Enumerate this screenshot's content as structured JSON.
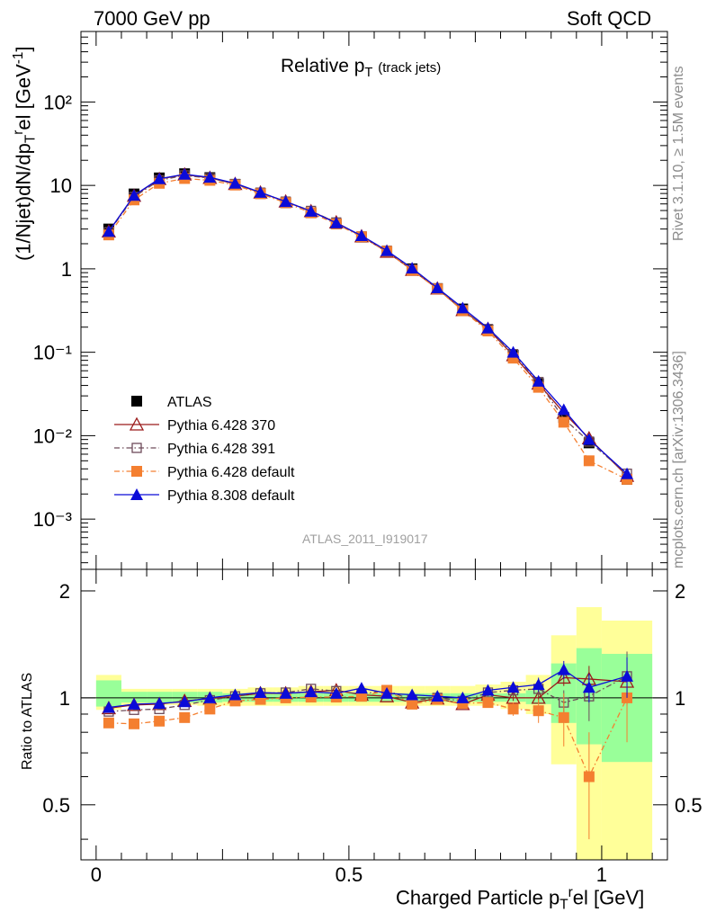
{
  "header": {
    "left": "7000 GeV pp",
    "right": "Soft QCD"
  },
  "side_text": {
    "top": "Rivet 3.1.10, ≥ 1.5M events",
    "bottom": "mcplots.cern.ch [arXiv:1306.3436]"
  },
  "panel_title": {
    "main": "Relative p",
    "sub": "T",
    "extra": "(track jets)"
  },
  "analysis_id": "ATLAS_2011_I919017",
  "axes": {
    "ylabel_main": "(1/Njet)dN/dp",
    "ylabel_sub": "T",
    "ylabel_sup": "r",
    "ylabel_end": "el [GeV",
    "ylabel_exp": "-1",
    "ylabel_close": "]",
    "xlabel_main": "Charged Particle p",
    "xlabel_sub": "T",
    "xlabel_sup": "r",
    "xlabel_end": "el [GeV]",
    "ratio_ylabel": "Ratio to ATLAS",
    "main_ytick_labels": [
      "10⁻³",
      "10⁻²",
      "10⁻¹",
      "1",
      "10",
      "10²"
    ],
    "ratio_ytick_labels": [
      "0.5",
      "1",
      "2"
    ],
    "xtick_labels": [
      "0",
      "0.5",
      "1"
    ]
  },
  "chart_data": {
    "type": "line",
    "x_bins": [
      [
        0.0,
        0.05
      ],
      [
        0.05,
        0.1
      ],
      [
        0.1,
        0.15
      ],
      [
        0.15,
        0.2
      ],
      [
        0.2,
        0.25
      ],
      [
        0.25,
        0.3
      ],
      [
        0.3,
        0.35
      ],
      [
        0.35,
        0.4
      ],
      [
        0.4,
        0.45
      ],
      [
        0.45,
        0.5
      ],
      [
        0.5,
        0.55
      ],
      [
        0.55,
        0.6
      ],
      [
        0.6,
        0.65
      ],
      [
        0.65,
        0.7
      ],
      [
        0.7,
        0.75
      ],
      [
        0.75,
        0.8
      ],
      [
        0.8,
        0.85
      ],
      [
        0.85,
        0.9
      ],
      [
        0.9,
        0.95
      ],
      [
        0.95,
        1.0
      ],
      [
        1.0,
        1.1
      ]
    ],
    "x": [
      0.025,
      0.075,
      0.125,
      0.175,
      0.225,
      0.275,
      0.325,
      0.375,
      0.425,
      0.475,
      0.525,
      0.575,
      0.625,
      0.675,
      0.725,
      0.775,
      0.825,
      0.875,
      0.925,
      0.975,
      1.05
    ],
    "xlim": [
      -0.03,
      1.13
    ],
    "main_ylim": [
      0.00025,
      700
    ],
    "main_yscale": "log",
    "ratio_ylim": [
      0.35,
      2.3
    ],
    "ratio_yscale": "log",
    "ratio_band_inner": [
      [
        0.945,
        1.12
      ],
      [
        0.97,
        1.04
      ],
      [
        0.97,
        1.04
      ],
      [
        0.97,
        1.04
      ],
      [
        0.97,
        1.04
      ],
      [
        0.975,
        1.03
      ],
      [
        0.975,
        1.03
      ],
      [
        0.975,
        1.03
      ],
      [
        0.975,
        1.03
      ],
      [
        0.975,
        1.03
      ],
      [
        0.975,
        1.03
      ],
      [
        0.975,
        1.03
      ],
      [
        0.975,
        1.03
      ],
      [
        0.975,
        1.03
      ],
      [
        0.975,
        1.03
      ],
      [
        0.975,
        1.03
      ],
      [
        0.975,
        1.03
      ],
      [
        0.96,
        1.05
      ],
      [
        0.85,
        1.25
      ],
      [
        0.74,
        1.38
      ],
      [
        0.66,
        1.33
      ]
    ],
    "ratio_band_outer": [
      [
        0.925,
        1.16
      ],
      [
        0.955,
        1.06
      ],
      [
        0.955,
        1.06
      ],
      [
        0.955,
        1.06
      ],
      [
        0.95,
        1.06
      ],
      [
        0.95,
        1.06
      ],
      [
        0.95,
        1.07
      ],
      [
        0.95,
        1.07
      ],
      [
        0.95,
        1.08
      ],
      [
        0.95,
        1.08
      ],
      [
        0.95,
        1.08
      ],
      [
        0.95,
        1.08
      ],
      [
        0.95,
        1.08
      ],
      [
        0.95,
        1.08
      ],
      [
        0.95,
        1.08
      ],
      [
        0.95,
        1.09
      ],
      [
        0.93,
        1.11
      ],
      [
        0.9,
        1.16
      ],
      [
        0.65,
        1.5
      ],
      [
        0.34,
        1.8
      ],
      [
        0.34,
        1.65
      ]
    ],
    "series": [
      {
        "name": "ATLAS",
        "color": "#000000",
        "marker": "square-filled",
        "line": "none",
        "values": [
          3.0,
          7.9,
          12.3,
          13.8,
          12.4,
          10.3,
          8.0,
          6.2,
          4.7,
          3.45,
          2.4,
          1.6,
          1.0,
          0.58,
          0.33,
          0.185,
          0.092,
          0.042,
          0.0165,
          0.0082,
          0.003
        ],
        "ratio": [
          1,
          1,
          1,
          1,
          1,
          1,
          1,
          1,
          1,
          1,
          1,
          1,
          1,
          1,
          1,
          1,
          1,
          1,
          1,
          1,
          1
        ]
      },
      {
        "name": "Pythia 6.428 370",
        "color": "#9b1b1b",
        "marker": "triangle-open",
        "line": "solid",
        "values": [
          2.8,
          7.5,
          11.9,
          13.5,
          12.3,
          10.4,
          8.2,
          6.4,
          4.9,
          3.6,
          2.45,
          1.6,
          0.97,
          0.58,
          0.32,
          0.19,
          0.092,
          0.042,
          0.0188,
          0.0093,
          0.0033
        ],
        "ratio": [
          0.935,
          0.955,
          0.96,
          0.98,
          0.995,
          1.01,
          1.03,
          1.03,
          1.04,
          1.05,
          1.02,
          1.01,
          0.97,
          0.995,
          0.96,
          1.02,
          1.0,
          1.0,
          1.14,
          1.13,
          1.11
        ],
        "ratio_err": [
          0.005,
          0.005,
          0.005,
          0.005,
          0.005,
          0.005,
          0.005,
          0.005,
          0.005,
          0.005,
          0.005,
          0.005,
          0.005,
          0.005,
          0.005,
          0.01,
          0.02,
          0.03,
          0.06,
          0.1,
          0.15
        ]
      },
      {
        "name": "Pythia 6.428 391",
        "color": "#6e4c5a",
        "marker": "square-open",
        "line": "dashdot",
        "values": [
          2.75,
          7.3,
          11.5,
          13.2,
          12.2,
          10.4,
          8.2,
          6.4,
          4.95,
          3.6,
          2.45,
          1.65,
          0.98,
          0.58,
          0.32,
          0.19,
          0.095,
          0.044,
          0.016,
          0.0085,
          0.0035
        ],
        "ratio": [
          0.915,
          0.925,
          0.93,
          0.955,
          0.985,
          1.01,
          1.03,
          1.035,
          1.06,
          1.045,
          1.025,
          1.05,
          0.985,
          1.0,
          0.98,
          1.035,
          1.05,
          1.06,
          0.97,
          1.01,
          1.15
        ],
        "ratio_err": [
          0.005,
          0.005,
          0.005,
          0.005,
          0.005,
          0.005,
          0.005,
          0.005,
          0.005,
          0.005,
          0.005,
          0.005,
          0.005,
          0.005,
          0.005,
          0.01,
          0.03,
          0.04,
          0.08,
          0.15,
          0.2
        ]
      },
      {
        "name": "Pythia 6.428 default",
        "color": "#f47f30",
        "marker": "square-filled",
        "line": "dashdot",
        "values": [
          2.55,
          6.7,
          10.6,
          12.1,
          11.5,
          10.1,
          7.95,
          6.2,
          4.7,
          3.45,
          2.42,
          1.62,
          0.96,
          0.575,
          0.315,
          0.18,
          0.085,
          0.038,
          0.0145,
          0.005,
          0.003
        ],
        "ratio": [
          0.85,
          0.845,
          0.86,
          0.88,
          0.93,
          0.98,
          0.99,
          1.0,
          1.005,
          1.005,
          1.01,
          1.05,
          0.96,
          0.99,
          0.965,
          0.97,
          0.93,
          0.92,
          0.88,
          0.6,
          1.0
        ],
        "ratio_err": [
          0.005,
          0.005,
          0.005,
          0.005,
          0.005,
          0.005,
          0.005,
          0.005,
          0.005,
          0.005,
          0.005,
          0.005,
          0.005,
          0.005,
          0.01,
          0.02,
          0.04,
          0.07,
          0.15,
          0.2,
          0.25
        ]
      },
      {
        "name": "Pythia 8.308 default",
        "color": "#0b0bd8",
        "marker": "triangle-filled",
        "line": "solid",
        "values": [
          2.8,
          7.6,
          12.0,
          13.6,
          12.5,
          10.6,
          8.25,
          6.4,
          4.9,
          3.55,
          2.5,
          1.65,
          1.02,
          0.59,
          0.34,
          0.195,
          0.1,
          0.045,
          0.0205,
          0.009,
          0.0035
        ],
        "ratio": [
          0.94,
          0.96,
          0.965,
          0.975,
          1.0,
          1.02,
          1.035,
          1.03,
          1.04,
          1.03,
          1.065,
          1.03,
          1.02,
          1.01,
          1.0,
          1.05,
          1.07,
          1.09,
          1.2,
          1.07,
          1.15
        ],
        "ratio_err": [
          0.005,
          0.005,
          0.005,
          0.005,
          0.005,
          0.005,
          0.005,
          0.005,
          0.005,
          0.005,
          0.005,
          0.005,
          0.005,
          0.005,
          0.005,
          0.02,
          0.03,
          0.05,
          0.07,
          0.1,
          0.15
        ]
      }
    ],
    "legend_position": "lower-left",
    "grid": false
  }
}
